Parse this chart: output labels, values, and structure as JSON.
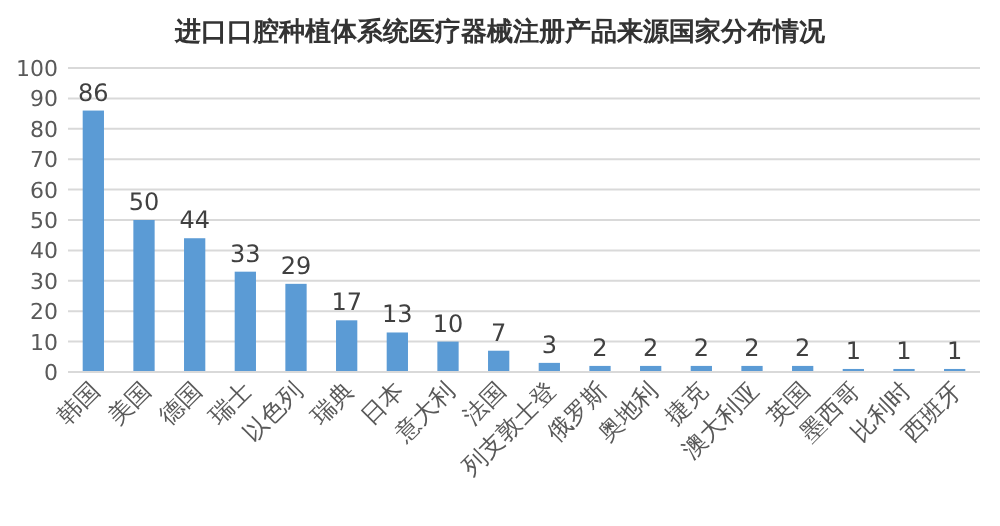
{
  "chart_data": {
    "type": "bar",
    "title": "进口口腔种植体系统医疗器械注册产品来源国家分布情况",
    "categories": [
      "韩国",
      "美国",
      "德国",
      "瑞士",
      "以色列",
      "瑞典",
      "日本",
      "意大利",
      "法国",
      "列支敦士登",
      "俄罗斯",
      "奥地利",
      "捷克",
      "澳大利亚",
      "英国",
      "墨西哥",
      "比利时",
      "西班牙"
    ],
    "values": [
      86,
      50,
      44,
      33,
      29,
      17,
      13,
      10,
      7,
      3,
      2,
      2,
      2,
      2,
      2,
      1,
      1,
      1
    ],
    "color": "#5b9bd5",
    "ylim": [
      0,
      100
    ],
    "yticks": [
      0,
      10,
      20,
      30,
      40,
      50,
      60,
      70,
      80,
      90,
      100
    ],
    "grid": "y",
    "data_labels": true
  }
}
